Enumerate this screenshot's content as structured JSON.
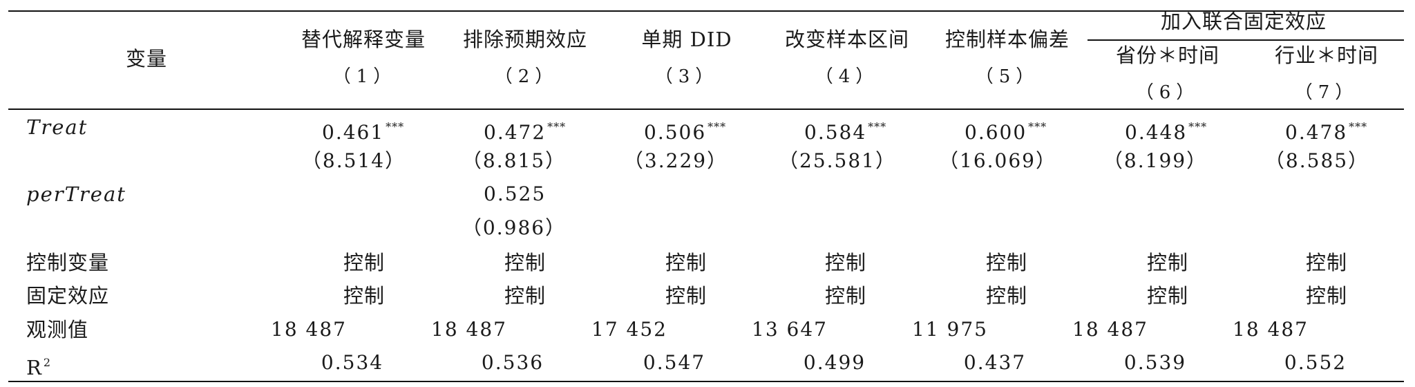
{
  "table": {
    "header": {
      "variable_label": "变量",
      "group_label": "加入联合固定效应",
      "columns": [
        {
          "name": "替代解释变量",
          "num": "（1）"
        },
        {
          "name": "排除预期效应",
          "num": "（2）"
        },
        {
          "name": "单期 DID",
          "num": "（3）"
        },
        {
          "name": "改变样本区间",
          "num": "（4）"
        },
        {
          "name": "控制样本偏差",
          "num": "（5）"
        },
        {
          "name": "省份＊时间",
          "num": "（6）"
        },
        {
          "name": "行业＊时间",
          "num": "（7）"
        }
      ]
    },
    "rows": {
      "treat": {
        "label": "Treat",
        "coefs": [
          "0.461",
          "0.472",
          "0.506",
          "0.584",
          "0.600",
          "0.448",
          "0.478"
        ],
        "stars": "***",
        "tstats": [
          "（8.514）",
          "（8.815）",
          "（3.229）",
          "（25.581）",
          "（16.069）",
          "（8.199）",
          "（8.585）"
        ]
      },
      "pertreat": {
        "label": "perTreat",
        "coef": "0.525",
        "tstat": "（0.986）"
      },
      "controls": {
        "label": "控制变量",
        "values": [
          "控制",
          "控制",
          "控制",
          "控制",
          "控制",
          "控制",
          "控制"
        ]
      },
      "fixed_effects": {
        "label": "固定效应",
        "values": [
          "控制",
          "控制",
          "控制",
          "控制",
          "控制",
          "控制",
          "控制"
        ]
      },
      "observations": {
        "label": "观测值",
        "values": [
          "18 487",
          "18 487",
          "17 452",
          "13 647",
          "11 975",
          "18 487",
          "18 487"
        ]
      },
      "r2": {
        "label": "R",
        "label_sup": "2",
        "values": [
          "0.534",
          "0.536",
          "0.547",
          "0.499",
          "0.437",
          "0.539",
          "0.552"
        ]
      }
    }
  }
}
